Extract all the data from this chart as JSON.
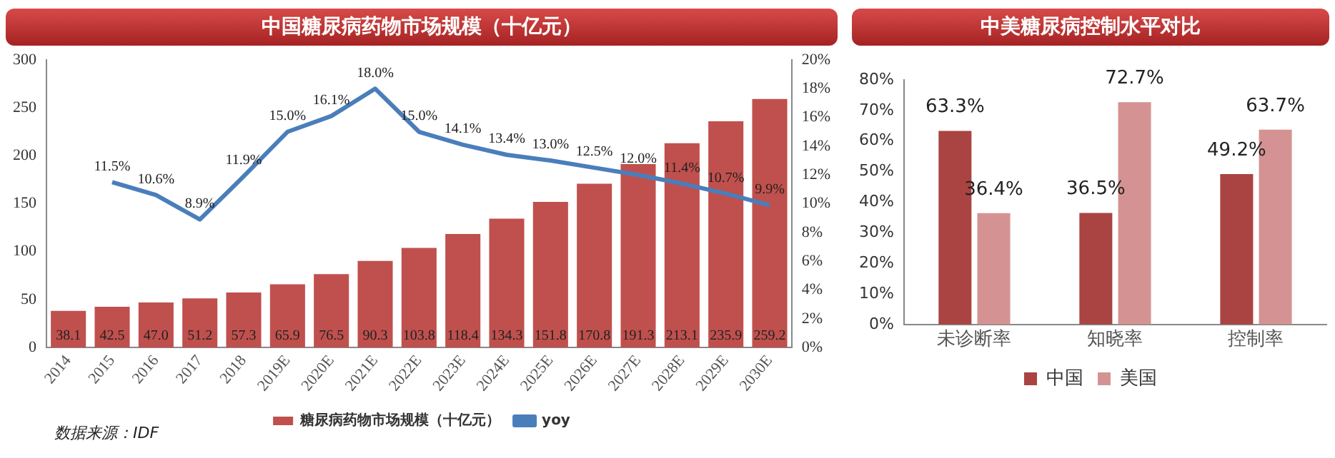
{
  "chart_data": [
    {
      "type": "bar",
      "title": "中国糖尿病药物市场规模（十亿元）",
      "categories": [
        "2014",
        "2015",
        "2016",
        "2017",
        "2018",
        "2019E",
        "2020E",
        "2021E",
        "2022E",
        "2023E",
        "2024E",
        "2025E",
        "2026E",
        "2027E",
        "2028E",
        "2029E",
        "2030E"
      ],
      "series": [
        {
          "name": "糖尿病药物市场规模（十亿元）",
          "color": "#c0504d",
          "values": [
            38.1,
            42.5,
            47.0,
            51.2,
            57.3,
            65.9,
            76.5,
            90.3,
            103.8,
            118.4,
            134.3,
            151.8,
            170.8,
            191.3,
            213.1,
            235.9,
            259.2
          ],
          "value_labels": [
            "38.1",
            "42.5",
            "47.0",
            "51.2",
            "57.3",
            "65.9",
            "76.5",
            "90.3",
            "103.8",
            "118.4",
            "134.3",
            "151.8",
            "170.8",
            "191.3",
            "213.1",
            "235.9",
            "259.2"
          ]
        },
        {
          "name": "yoy",
          "type": "line",
          "axis": "y2",
          "color": "#4a7ebb",
          "values": [
            null,
            11.5,
            10.6,
            8.9,
            11.9,
            15.0,
            16.1,
            18.0,
            15.0,
            14.1,
            13.4,
            13.0,
            12.5,
            12.0,
            11.4,
            10.7,
            9.9
          ],
          "value_labels": [
            null,
            "11.5%",
            "10.6%",
            "8.9%",
            "11.9%",
            "15.0%",
            "16.1%",
            "18.0%",
            "15.0%",
            "14.1%",
            "13.4%",
            "13.0%",
            "12.5%",
            "12.0%",
            "11.4%",
            "10.7%",
            "9.9%"
          ]
        }
      ],
      "ylim": [
        0,
        300
      ],
      "yticks": [
        0,
        50,
        100,
        150,
        200,
        250,
        300
      ],
      "y2lim": [
        0,
        20
      ],
      "y2ticks": [
        {
          "value": 0,
          "label": "0%"
        },
        {
          "value": 2,
          "label": "2%"
        },
        {
          "value": 4,
          "label": "4%"
        },
        {
          "value": 6,
          "label": "6%"
        },
        {
          "value": 8,
          "label": "8%"
        },
        {
          "value": 10,
          "label": "10%"
        },
        {
          "value": 12,
          "label": "12%"
        },
        {
          "value": 14,
          "label": "14%"
        },
        {
          "value": 16,
          "label": "16%"
        },
        {
          "value": 18,
          "label": "18%"
        },
        {
          "value": 20,
          "label": "20%"
        }
      ],
      "grid": false,
      "legend": "bottom",
      "marker": "none",
      "annotations": [
        "数据来源：IDF"
      ]
    },
    {
      "type": "bar",
      "title": "中美糖尿病控制水平对比",
      "categories": [
        "未诊断率",
        "知晓率",
        "控制率"
      ],
      "series": [
        {
          "name": "中国",
          "color": "#a94442",
          "values": [
            63.3,
            36.5,
            49.2
          ],
          "value_labels": [
            "63.3%",
            "36.5%",
            "49.2%"
          ]
        },
        {
          "name": "美国",
          "color": "#d49392",
          "values": [
            36.4,
            72.7,
            63.7
          ],
          "value_labels": [
            "36.4%",
            "72.7%",
            "63.7%"
          ]
        }
      ],
      "ylim": [
        0,
        80
      ],
      "yticks": [
        {
          "value": 0,
          "label": "0%"
        },
        {
          "value": 10,
          "label": "10%"
        },
        {
          "value": 20,
          "label": "20%"
        },
        {
          "value": 30,
          "label": "30%"
        },
        {
          "value": 40,
          "label": "40%"
        },
        {
          "value": 50,
          "label": "50%"
        },
        {
          "value": 60,
          "label": "60%"
        },
        {
          "value": 70,
          "label": "70%"
        },
        {
          "value": 80,
          "label": "80%"
        }
      ],
      "grid": false,
      "legend": "bottom"
    }
  ]
}
